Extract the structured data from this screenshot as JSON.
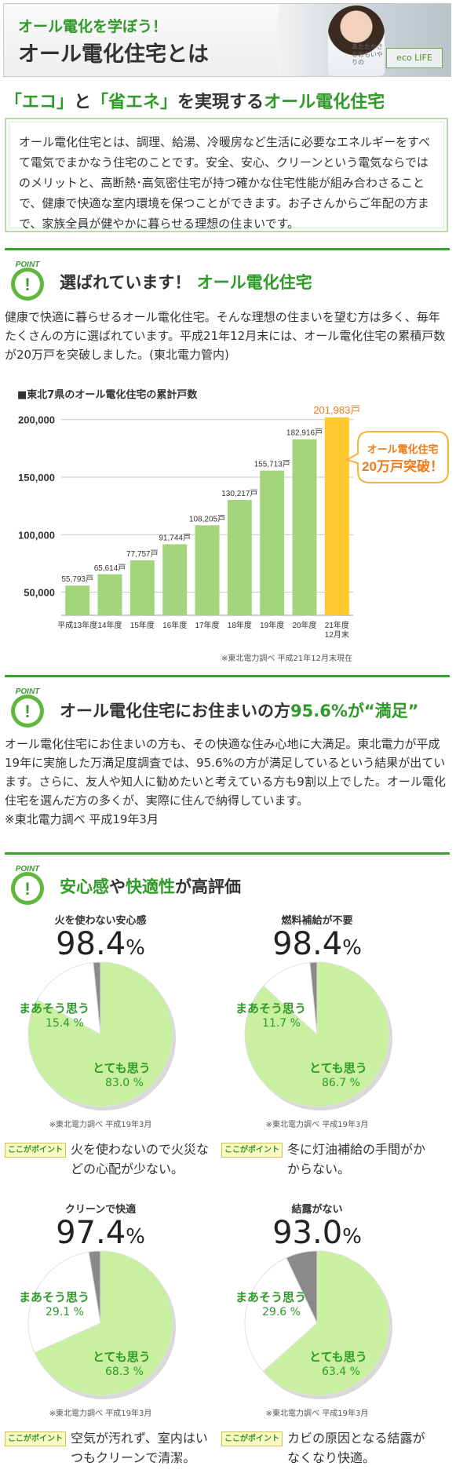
{
  "header": {
    "subtitle": "オール電化を学ぼう！",
    "title": "オール電化住宅とは",
    "logo": "eco LIFE",
    "logo_small": "あたたかさとおもいやりの"
  },
  "intro": {
    "heading_q1": "「エコ」",
    "heading_to": "と",
    "heading_q2": "「省エネ」",
    "heading_rest": "を実現する",
    "heading_green": "オール電化住宅",
    "body": "オール電化住宅とは、調理、給湯、冷暖房など生活に必要なエネルギーをすべて電気でまかなう住宅のことです。安全、安心、クリーンという電気ならではのメリットと、高断熱･高気密住宅が持つ確かな住宅性能が組み合わさることで、健康で快適な室内環境を保つことができます。お子さんからご年配の方まで、家族全員が健やかに暮らせる理想の住まいです。"
  },
  "section1": {
    "heading_a": "選ばれています！",
    "heading_b": "オール電化住宅",
    "body": "健康で快適に暮らせるオール電化住宅。そんな理想の住まいを望む方は多く、毎年たくさんの方に選ばれています。平成21年12月末には、オール電化住宅の累積戸数が20万戸を突破しました。(東北電力管内)"
  },
  "chart_data": {
    "type": "bar",
    "title": "■東北7県のオール電化住宅の累計戸数",
    "categories": [
      "平成13年度",
      "14年度",
      "15年度",
      "16年度",
      "17年度",
      "18年度",
      "19年度",
      "20年度",
      "21年度 12月末"
    ],
    "values": [
      55793,
      65614,
      77757,
      91744,
      108205,
      130217,
      155713,
      182916,
      201983
    ],
    "value_labels": [
      "55,793戸",
      "65,614戸",
      "77,757戸",
      "91,744戸",
      "108,205戸",
      "130,217戸",
      "155,713戸",
      "182,916戸",
      "201,983戸"
    ],
    "yticks": [
      "50,000",
      "100,000",
      "150,000",
      "200,000"
    ],
    "ytick_values": [
      50000,
      100000,
      150000,
      200000
    ],
    "ylim": [
      30000,
      210000
    ],
    "bar_color": "#a3d57c",
    "highlight_color": "#fec92e",
    "highlight_label_color": "#ee7b1c",
    "callout_line1": "オール電化住宅",
    "callout_line2": "20万戸突破！",
    "note": "※東北電力調べ 平成21年12月末現在"
  },
  "section2": {
    "heading_a": "オール電化住宅にお住まいの方",
    "heading_pct": "95.6%が",
    "heading_q": "“満足”",
    "body": "オール電化住宅にお住まいの方も、その快適な住み心地に大満足。東北電力が平成19年に実施した万満足度調査では、95.6%の方が満足しているという結果が出ています。さらに、友人や知人に勧めたいと考えている方も9割以上でした。オール電化住宅を選んだ方の多くが、実際に住んで納得しています。",
    "note": "※東北電力調べ 平成19年3月"
  },
  "section3": {
    "heading_a": "安心感",
    "heading_b": "や",
    "heading_c": "快適性",
    "heading_d": "が高評価"
  },
  "pies": [
    {
      "title": "火を使わない安心感",
      "total": "98.4",
      "pct": "%",
      "mz": "まあそう思う",
      "mz_val": "15.4 %",
      "tm": "とても思う",
      "tm_val": "83.0 %",
      "mz_frac": 0.154,
      "tm_frac": 0.83,
      "note": "※東北電力調べ 平成19年3月",
      "point": "火を使わないので火災などの心配が少ない。"
    },
    {
      "title": "燃料補給が不要",
      "total": "98.4",
      "pct": "%",
      "mz": "まあそう思う",
      "mz_val": "11.7 %",
      "tm": "とても思う",
      "tm_val": "86.7 %",
      "mz_frac": 0.117,
      "tm_frac": 0.867,
      "note": "※東北電力調べ 平成19年3月",
      "point": "冬に灯油補給の手間がかからない。"
    },
    {
      "title": "クリーンで快適",
      "total": "97.4",
      "pct": "%",
      "mz": "まあそう思う",
      "mz_val": "29.1 %",
      "tm": "とても思う",
      "tm_val": "68.3 %",
      "mz_frac": 0.291,
      "tm_frac": 0.683,
      "note": "※東北電力調べ 平成19年3月",
      "point": "空気が汚れず、室内はいつもクリーンで清潔。"
    },
    {
      "title": "結露がない",
      "total": "93.0",
      "pct": "%",
      "mz": "まあそう思う",
      "mz_val": "29.6 %",
      "tm": "とても思う",
      "tm_val": "63.4 %",
      "mz_frac": 0.296,
      "tm_frac": 0.634,
      "note": "※東北電力調べ 平成19年3月",
      "point": "カビの原因となる結露がなくなり快適。"
    }
  ],
  "point_badge": "ここがポイント",
  "point_icon_text": "POINT",
  "colors": {
    "accent": "#2e9a28",
    "rule": "#3aa32c",
    "pie_main": "#c8f0a0",
    "pie_other": "#8a8a8a"
  }
}
